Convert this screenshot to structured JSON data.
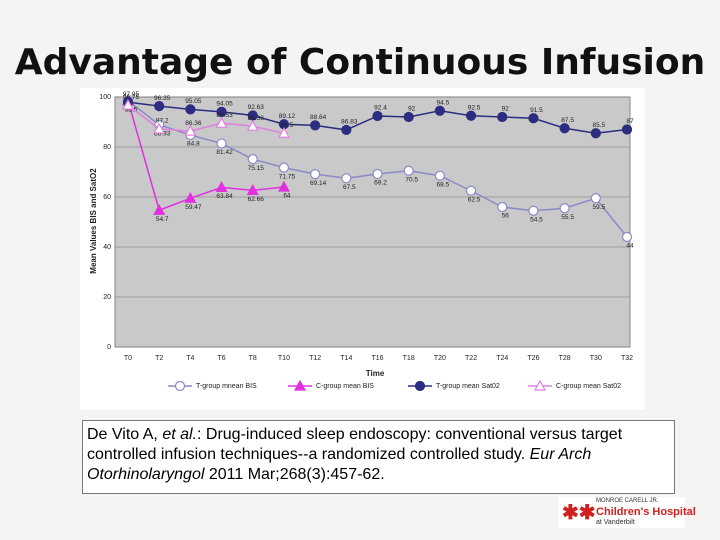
{
  "title": "Advantage of Continuous Infusion",
  "chart_data": {
    "type": "line",
    "ylabel": "Mean Values BIS and SatO2",
    "xlabel": "Time",
    "categories": [
      "T0",
      "T2",
      "T4",
      "T6",
      "T8",
      "T10",
      "T12",
      "T14",
      "T16",
      "T18",
      "T20",
      "T22",
      "T24",
      "T26",
      "T28",
      "T30",
      "T32"
    ],
    "ylim": [
      0,
      100
    ],
    "yticks": [
      0,
      20,
      40,
      60,
      80,
      100
    ],
    "grid": true,
    "series": [
      {
        "name": "T-group mnean BIS",
        "color": "#8a8ac8",
        "marker": "circle-open",
        "values": [
          98.5,
          88.93,
          84.8,
          81.42,
          75.15,
          71.75,
          69.14,
          67.5,
          69.2,
          70.5,
          68.5,
          62.5,
          56,
          54.5,
          55.5,
          59.5,
          44
        ]
      },
      {
        "name": "C-group mean BIS",
        "color": "#e030e0",
        "marker": "triangle-filled",
        "values": [
          98.5,
          54.7,
          59.47,
          63.84,
          62.66,
          64,
          null,
          null,
          null,
          null,
          null,
          null,
          null,
          null,
          null,
          null,
          null
        ]
      },
      {
        "name": "T-group mean Sat02",
        "color": "#2c2c80",
        "marker": "circle-filled",
        "values": [
          97.95,
          96.35,
          95.05,
          94.05,
          92.63,
          89.12,
          88.64,
          86.83,
          92.4,
          92,
          94.5,
          92.5,
          92,
          91.5,
          87.5,
          85.5,
          87
        ]
      },
      {
        "name": "C-group mean Sat02",
        "color": "#e080e0",
        "marker": "triangle-open",
        "values": [
          96.75,
          87.2,
          86.36,
          89.53,
          88.33,
          85.5,
          null,
          null,
          null,
          null,
          null,
          null,
          null,
          null,
          null,
          null,
          null
        ]
      }
    ]
  },
  "citation": [
    "De Vito A, ",
    "et al.",
    ": Drug-induced sleep endoscopy: conventional versus target controlled infusion techniques--a randomized controlled study. ",
    "Eur Arch Otorhinolaryngol",
    " 2011 Mar;268(3):457-62."
  ],
  "logo": [
    "MONROE CARELL JR.",
    "Children's Hospital",
    "at Vanderbilt"
  ]
}
